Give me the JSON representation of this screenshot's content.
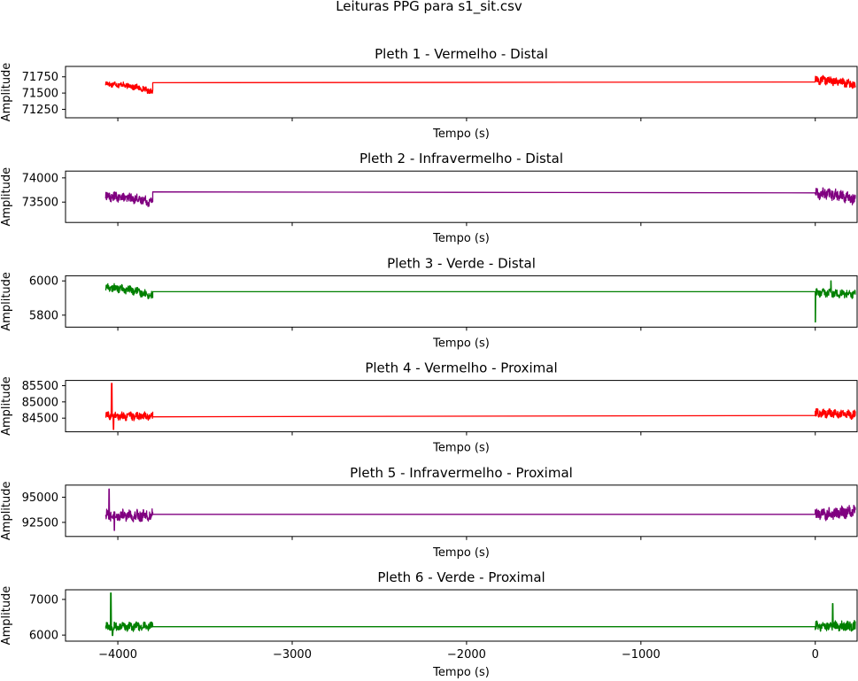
{
  "figure": {
    "suptitle": "Leituras PPG para s1_sit.csv"
  },
  "chart_data": [
    {
      "type": "line",
      "title": "Pleth 1 - Vermelho - Distal",
      "xlabel": "Tempo (s)",
      "ylabel": "Amplitude",
      "color": "#ff0000",
      "xlim": [
        -4300,
        240
      ],
      "ylim": [
        71120,
        71910
      ],
      "yticks": [
        71250,
        71500,
        71750
      ],
      "show_xticklabels": false,
      "series": [
        {
          "segments": [
            {
              "x_start": -4070,
              "x_end": -3800,
              "base": 71640,
              "amp": 40,
              "end_drift": -120,
              "extra": []
            },
            {
              "x_start": -3800,
              "x_end": 0,
              "flat": [
                71660,
                71670
              ]
            },
            {
              "x_start": 0,
              "x_end": 230,
              "base": 71700,
              "amp": 55,
              "end_drift": -80,
              "extra": []
            }
          ]
        }
      ]
    },
    {
      "type": "line",
      "title": "Pleth 2 - Infravermelho - Distal",
      "xlabel": "Tempo (s)",
      "ylabel": "Amplitude",
      "color": "#800080",
      "xlim": [
        -4300,
        240
      ],
      "ylim": [
        73080,
        74140
      ],
      "yticks": [
        73500,
        74000
      ],
      "show_xticklabels": false,
      "series": [
        {
          "segments": [
            {
              "x_start": -4070,
              "x_end": -3800,
              "base": 73610,
              "amp": 85,
              "end_drift": -110,
              "extra": []
            },
            {
              "x_start": -3800,
              "x_end": 0,
              "flat": [
                73710,
                73690
              ]
            },
            {
              "x_start": 0,
              "x_end": 230,
              "base": 73680,
              "amp": 100,
              "end_drift": -130,
              "extra": []
            }
          ]
        }
      ]
    },
    {
      "type": "line",
      "title": "Pleth 3 - Verde - Distal",
      "xlabel": "Tempo (s)",
      "ylabel": "Amplitude",
      "color": "#008000",
      "xlim": [
        -4300,
        240
      ],
      "ylim": [
        5730,
        6030
      ],
      "yticks": [
        5800,
        6000
      ],
      "show_xticklabels": false,
      "series": [
        {
          "segments": [
            {
              "x_start": -4070,
              "x_end": -3800,
              "base": 5960,
              "amp": 20,
              "end_drift": -50,
              "extra": []
            },
            {
              "x_start": -3800,
              "x_end": 0,
              "flat": [
                5937,
                5937
              ]
            },
            {
              "x_start": 0,
              "x_end": 230,
              "base": 5930,
              "amp": 20,
              "end_drift": -10,
              "extra": [
                [
                  0,
                  5760
                ],
                [
                  90,
                  6000
                ]
              ]
            }
          ]
        }
      ]
    },
    {
      "type": "line",
      "title": "Pleth 4 - Vermelho - Proximal",
      "xlabel": "Tempo (s)",
      "ylabel": "Amplitude",
      "color": "#ff0000",
      "xlim": [
        -4300,
        240
      ],
      "ylim": [
        84080,
        85660
      ],
      "yticks": [
        84500,
        85000,
        85500
      ],
      "show_xticklabels": false,
      "series": [
        {
          "segments": [
            {
              "x_start": -4070,
              "x_end": -3800,
              "base": 84560,
              "amp": 110,
              "end_drift": 0,
              "extra": [
                [
                  -4035,
                  85570
                ],
                [
                  -4025,
                  84150
                ]
              ]
            },
            {
              "x_start": -3800,
              "x_end": 0,
              "flat": [
                84540,
                84580
              ]
            },
            {
              "x_start": 0,
              "x_end": 230,
              "base": 84650,
              "amp": 110,
              "end_drift": -50,
              "extra": []
            }
          ]
        }
      ]
    },
    {
      "type": "line",
      "title": "Pleth 5 - Infravermelho - Proximal",
      "xlabel": "Tempo (s)",
      "ylabel": "Amplitude",
      "color": "#800080",
      "xlim": [
        -4300,
        240
      ],
      "ylim": [
        91100,
        96200
      ],
      "yticks": [
        92500,
        95000
      ],
      "show_xticklabels": false,
      "series": [
        {
          "segments": [
            {
              "x_start": -4070,
              "x_end": -3800,
              "base": 93200,
              "amp": 500,
              "end_drift": 0,
              "extra": [
                [
                  -4050,
                  95800
                ],
                [
                  -4020,
                  91700
                ]
              ]
            },
            {
              "x_start": -3800,
              "x_end": 0,
              "flat": [
                93300,
                93300
              ]
            },
            {
              "x_start": 0,
              "x_end": 230,
              "base": 93300,
              "amp": 500,
              "end_drift": 400,
              "extra": []
            }
          ]
        }
      ]
    },
    {
      "type": "line",
      "title": "Pleth 6 - Verde - Proximal",
      "xlabel": "Tempo (s)",
      "ylabel": "Amplitude",
      "color": "#008000",
      "xlim": [
        -4300,
        240
      ],
      "ylim": [
        5830,
        7270
      ],
      "xticks": [
        -4000,
        -3000,
        -2000,
        -1000,
        0
      ],
      "xticklabels": [
        "−4000",
        "−3000",
        "−2000",
        "−1000",
        "0"
      ],
      "yticks": [
        6000,
        7000
      ],
      "show_xticklabels": true,
      "series": [
        {
          "segments": [
            {
              "x_start": -4070,
              "x_end": -3800,
              "base": 6220,
              "amp": 110,
              "end_drift": 40,
              "extra": [
                [
                  -4040,
                  7180
                ],
                [
                  -4030,
                  5990
                ]
              ]
            },
            {
              "x_start": -3800,
              "x_end": 0,
              "flat": [
                6235,
                6235
              ]
            },
            {
              "x_start": 0,
              "x_end": 230,
              "base": 6250,
              "amp": 120,
              "end_drift": 0,
              "extra": [
                [
                  100,
                  6880
                ]
              ]
            }
          ]
        }
      ]
    }
  ]
}
